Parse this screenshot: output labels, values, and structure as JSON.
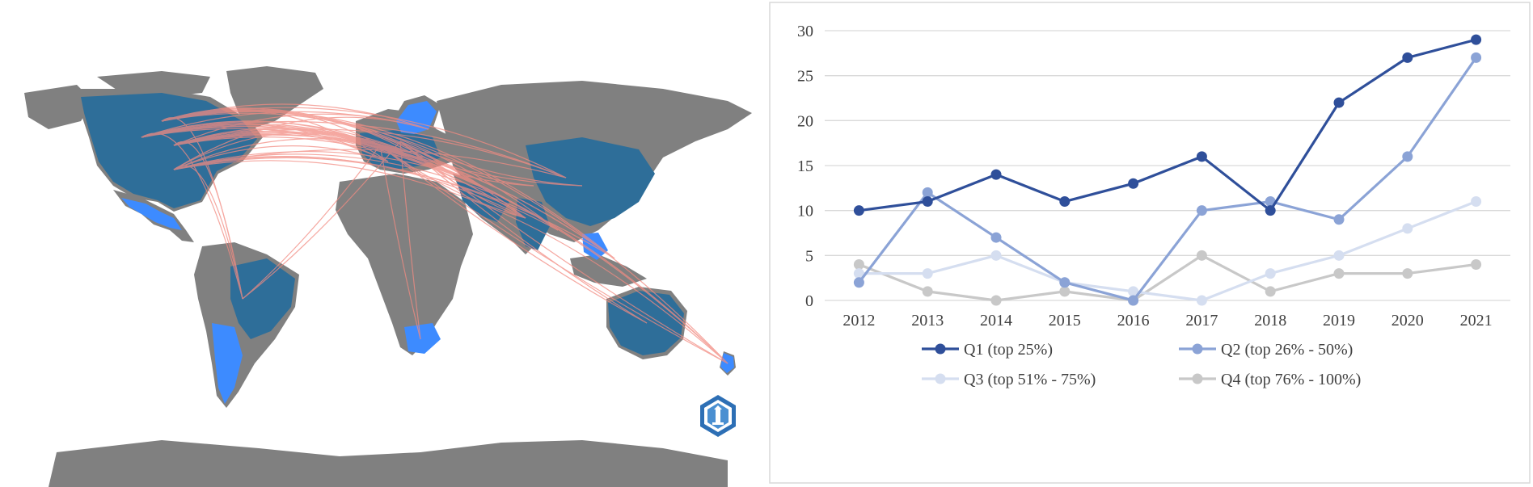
{
  "map": {
    "land_color": "#808080",
    "country_color": "#2e6e99",
    "highlight_color": "#3d8bff",
    "link_color": "#f28b82",
    "logo_icon": "hexagon-lighthouse-icon"
  },
  "chart_data": {
    "type": "line",
    "categories": [
      "2012",
      "2013",
      "2014",
      "2015",
      "2016",
      "2017",
      "2018",
      "2019",
      "2020",
      "2021"
    ],
    "ylim": [
      0,
      30
    ],
    "yticks": [
      0,
      5,
      10,
      15,
      20,
      25,
      30
    ],
    "grid": true,
    "legend_position": "bottom",
    "title": "",
    "xlabel": "",
    "ylabel": "",
    "series": [
      {
        "name": "Q1 (top 25%)",
        "color": "#2f4f9a",
        "values": [
          10,
          11,
          14,
          11,
          13,
          16,
          10,
          22,
          27,
          29
        ]
      },
      {
        "name": "Q2 (top 26% - 50%)",
        "color": "#8ba3d6",
        "values": [
          2,
          12,
          7,
          2,
          0,
          10,
          11,
          9,
          16,
          27
        ]
      },
      {
        "name": "Q3 (top 51% - 75%)",
        "color": "#d5def0",
        "values": [
          3,
          3,
          5,
          2,
          1,
          0,
          3,
          5,
          8,
          11
        ]
      },
      {
        "name": "Q4 (top 76% - 100%)",
        "color": "#c8c8c8",
        "values": [
          4,
          1,
          0,
          1,
          0,
          5,
          1,
          3,
          3,
          4
        ]
      }
    ]
  }
}
